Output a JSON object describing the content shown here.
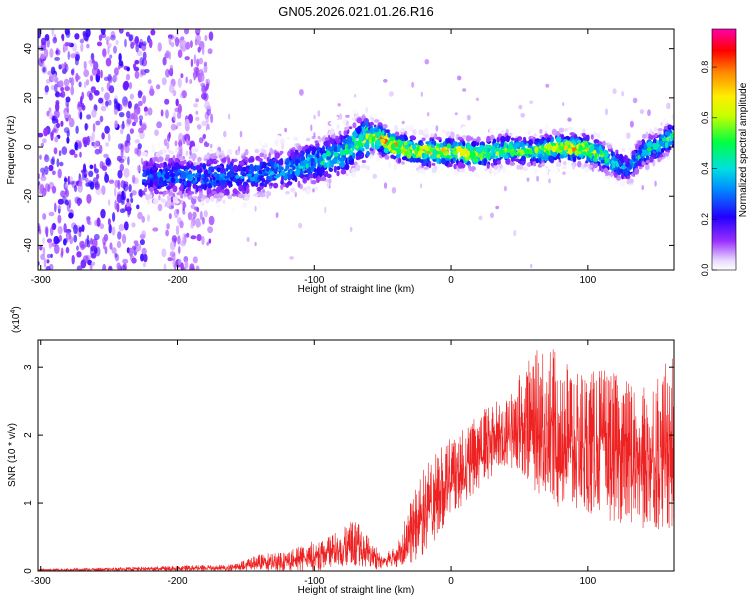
{
  "figure_title": "GN05.2026.021.01.26.R16",
  "chart_data": [
    {
      "type": "heatmap",
      "title": "GN05.2026.021.01.26.R16",
      "xlabel": "Height of straight line (km)",
      "ylabel": "Frequency (Hz)",
      "xlim": [
        -302,
        163
      ],
      "ylim": [
        -50,
        48
      ],
      "x_ticks": [
        -300,
        -200,
        -100,
        0,
        100
      ],
      "y_ticks": [
        -40,
        -20,
        0,
        20,
        40
      ],
      "x_tick_labels": [
        "-300",
        "-200",
        "-100",
        "0",
        "100"
      ],
      "y_tick_labels": [
        "-40",
        "-20",
        "0",
        "20",
        "40"
      ],
      "colorbar": {
        "label": "Normalized spectral amplitude",
        "range": [
          0,
          0.95
        ],
        "ticks": [
          0,
          0.2,
          0.4,
          0.6,
          0.8
        ],
        "tick_labels": [
          "0.0",
          "0.2",
          "0.4",
          "0.6",
          "0.8"
        ],
        "colors": [
          "#ffffff",
          "#8800ff",
          "#0000ff",
          "#00ccff",
          "#00ff66",
          "#ffff00",
          "#ff8800",
          "#ff0000",
          "#ff00aa"
        ]
      },
      "ridge": {
        "x": [
          -220,
          -200,
          -180,
          -160,
          -140,
          -120,
          -100,
          -80,
          -65,
          -55,
          -40,
          -20,
          0,
          20,
          40,
          60,
          80,
          100,
          115,
          130,
          140,
          150,
          163
        ],
        "freq": [
          -12,
          -12,
          -12,
          -12,
          -11,
          -9,
          -6,
          -3,
          3,
          4,
          0,
          -2,
          -2,
          -3,
          -1,
          -2,
          0,
          -1,
          -5,
          -9,
          -2,
          0,
          5
        ],
        "peak_amplitude": [
          0.3,
          0.35,
          0.35,
          0.35,
          0.35,
          0.4,
          0.45,
          0.5,
          0.6,
          0.85,
          0.8,
          0.75,
          0.75,
          0.7,
          0.6,
          0.6,
          0.8,
          0.75,
          0.5,
          0.35,
          0.5,
          0.5,
          0.6
        ]
      },
      "noise_region_x": [
        -302,
        -175
      ]
    },
    {
      "type": "line",
      "xlabel": "Height of straight line (km)",
      "ylabel": "SNR (10 * v/v)",
      "y_multiplier_label": "(x10",
      "y_multiplier_exp": "4",
      "xlim": [
        -302,
        163
      ],
      "ylim": [
        0,
        3.4
      ],
      "x_ticks": [
        -300,
        -200,
        -100,
        0,
        100
      ],
      "y_ticks": [
        0,
        1,
        2,
        3
      ],
      "x_tick_labels": [
        "-300",
        "-200",
        "-100",
        "0",
        "100"
      ],
      "y_tick_labels": [
        "0",
        "1",
        "2",
        "3"
      ],
      "series": [
        {
          "color": "#ee2222",
          "envelope_x": [
            -302,
            -250,
            -200,
            -160,
            -140,
            -120,
            -100,
            -90,
            -80,
            -70,
            -60,
            -50,
            -40,
            -30,
            -20,
            -10,
            0,
            10,
            20,
            30,
            40,
            50,
            60,
            70,
            80,
            90,
            100,
            110,
            120,
            130,
            140,
            150,
            163
          ],
          "envelope_min": [
            0,
            0,
            0,
            0,
            0,
            0,
            0,
            0.03,
            0.05,
            0.05,
            0.03,
            0.02,
            0.05,
            0.1,
            0.2,
            0.5,
            0.8,
            1.0,
            1.2,
            1.4,
            1.5,
            1.5,
            1.2,
            1.0,
            0.9,
            0.8,
            0.8,
            0.8,
            0.7,
            0.7,
            0.6,
            0.6,
            0.6
          ],
          "envelope_max": [
            0.03,
            0.05,
            0.08,
            0.1,
            0.25,
            0.3,
            0.45,
            0.5,
            0.65,
            0.75,
            0.5,
            0.25,
            0.4,
            1.0,
            1.5,
            1.8,
            2.0,
            2.1,
            2.3,
            2.5,
            2.5,
            2.9,
            3.2,
            3.4,
            3.2,
            3.0,
            2.9,
            3.0,
            2.9,
            2.8,
            2.7,
            2.9,
            3.2
          ]
        }
      ]
    }
  ]
}
